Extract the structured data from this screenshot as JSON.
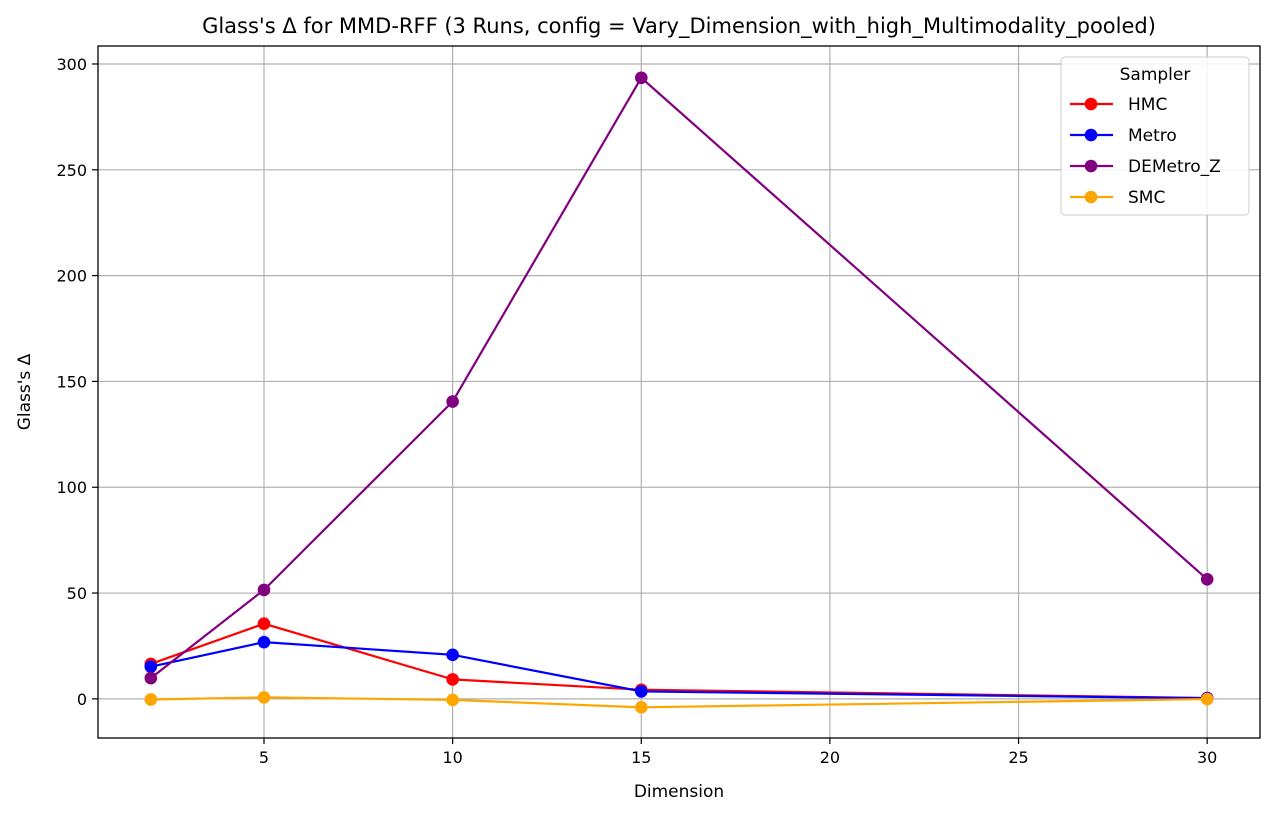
{
  "chart_data": {
    "type": "line",
    "title": "Glass's Δ for MMD-RFF (3 Runs, config = Vary_Dimension_with_high_Multimodality_pooled)",
    "xlabel": "Dimension",
    "ylabel": "Glass's Δ",
    "xlim": [
      0.6,
      31.4
    ],
    "ylim": [
      -18.5,
      308.5
    ],
    "xticks": [
      5,
      10,
      15,
      20,
      25,
      30
    ],
    "yticks": [
      0,
      50,
      100,
      150,
      200,
      250,
      300
    ],
    "grid": true,
    "legend": {
      "title": "Sampler",
      "placement": "top-right"
    },
    "x": [
      2,
      5,
      10,
      15,
      30
    ],
    "series": [
      {
        "name": "HMC",
        "color": "#ff0000",
        "values": [
          16.5,
          35.5,
          9.2,
          4.3,
          0.4
        ]
      },
      {
        "name": "Metro",
        "color": "#0000ff",
        "values": [
          15.2,
          26.8,
          20.8,
          3.5,
          0.3
        ]
      },
      {
        "name": "DEMetro_Z",
        "color": "#800080",
        "values": [
          9.8,
          51.5,
          140.5,
          293.5,
          56.5
        ]
      },
      {
        "name": "SMC",
        "color": "#ffa500",
        "values": [
          -0.3,
          0.7,
          -0.5,
          -4.0,
          -0.1
        ]
      }
    ]
  }
}
